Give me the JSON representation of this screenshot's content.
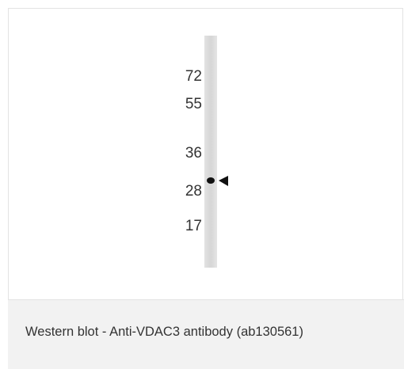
{
  "markers": [
    72,
    55,
    36,
    28,
    17
  ],
  "caption": "Western blot - Anti-VDAC3 antibody (ab130561)"
}
